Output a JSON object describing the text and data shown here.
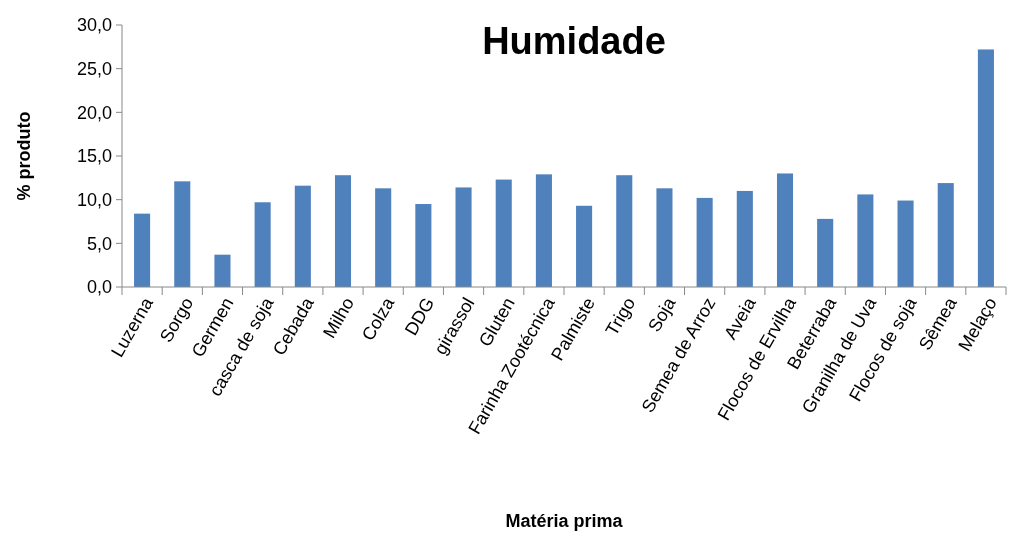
{
  "chart_data": {
    "type": "bar",
    "title": "Humidade",
    "xlabel": "Matéria prima",
    "ylabel": "% produto",
    "categories": [
      "Luzerna",
      "Sorgo",
      "Germen",
      "casca de soja",
      "Cebada",
      "Milho",
      "Colza",
      "DDG",
      "girassol",
      "Gluten",
      "Farinha Zootécnica",
      "Palmiste",
      "Trigo",
      "Soja",
      "Semea de Arroz",
      "Aveia",
      "Flocos de Ervilha",
      "Beterraba",
      "Granilha de Uva",
      "Flocos de soja",
      "Sêmea",
      "Melaço"
    ],
    "values": [
      8.4,
      12.1,
      3.7,
      9.7,
      11.6,
      12.8,
      11.3,
      9.5,
      11.4,
      12.3,
      12.9,
      9.3,
      12.8,
      11.3,
      10.2,
      11.0,
      13.0,
      7.8,
      10.6,
      9.9,
      11.9,
      27.2
    ],
    "color": "#4f81bd",
    "ylim": [
      0,
      30
    ],
    "yticks": [
      {
        "value": 0,
        "label": "0,0"
      },
      {
        "value": 5,
        "label": "5,0"
      },
      {
        "value": 10,
        "label": "10,0"
      },
      {
        "value": 15,
        "label": "15,0"
      },
      {
        "value": 20,
        "label": "20,0"
      },
      {
        "value": 25,
        "label": "25,0"
      },
      {
        "value": 30,
        "label": "30,0"
      }
    ]
  }
}
